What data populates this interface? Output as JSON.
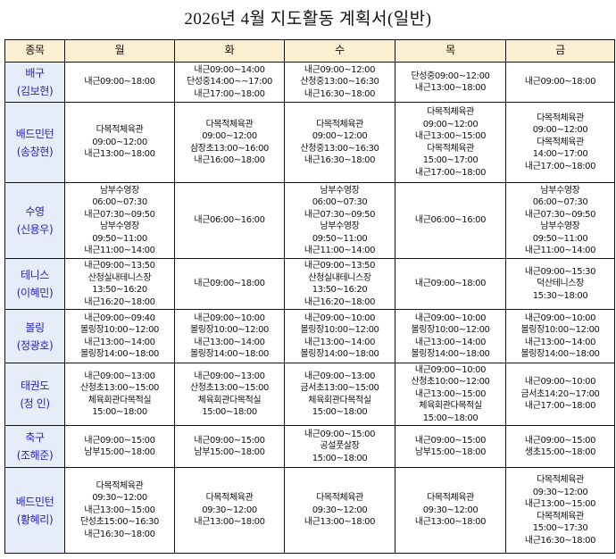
{
  "title": "2026년  4월  지도활동  계획서(일반)",
  "colors": {
    "header_bg": "#fdefd2",
    "sport_bg": "#e6edf8",
    "sport_text": "#2323c8"
  },
  "headers": [
    "종목",
    "월",
    "화",
    "수",
    "목",
    "금"
  ],
  "rows": [
    {
      "sport": "배구",
      "coach": "(김보현)",
      "days": [
        [
          "내근09:00~18:00"
        ],
        [
          "내근09:00~14:00",
          "단성중14:00~~17:00",
          "내근17:00~18:00"
        ],
        [
          "내근09:00~12:00",
          "산청중13:00~16:30",
          "내근16:30~18:00"
        ],
        [
          "단성중09:00~12:00",
          "내근13:00~18:00"
        ],
        [
          "내근09:00~18:00"
        ]
      ]
    },
    {
      "sport": "배드민턴",
      "coach": "(송창현)",
      "days": [
        [
          "다목적체육관",
          "09:00~12:00",
          "내근13:00~18:00"
        ],
        [
          "다목적체육관",
          "09:00~12:00",
          "삼장초13:00~16:00",
          "내근16:00~18:00"
        ],
        [
          "다목적체육관",
          "09:00~12:00",
          "산청중13:00~16:30",
          "내근16:30~18:00"
        ],
        [
          "다목적체육관",
          "09:00~12:00",
          "내근13:00~15:00",
          "다목적체육관",
          "15:00~17:00",
          "내근17:00~18:00"
        ],
        [
          "다목적체육관",
          "09:00~12:00",
          "다목적체육관",
          "14:00~17:00",
          "내근17:00~18:00"
        ]
      ]
    },
    {
      "sport": "수영",
      "coach": "(신용우)",
      "days": [
        [
          "남부수영장",
          "06:00~07:30",
          "내근07:30~09:50",
          "남부수영장",
          "09:50~11:00",
          "내근11:00~14:00"
        ],
        [
          "내근06:00~16:00"
        ],
        [
          "남부수영장",
          "06:00~07:30",
          "내근07:30~09:50",
          "남부수영장",
          "09:50~11:00",
          "내근11:00~14:00"
        ],
        [
          "내근06:00~16:00"
        ],
        [
          "남부수영장",
          "06:00~07:30",
          "내근07:30~09:50",
          "남부수영장",
          "09:50~11:00",
          "내근11:00~14:00"
        ]
      ]
    },
    {
      "sport": "테니스",
      "coach": "(이혜민)",
      "days": [
        [
          "내근09:00~13:50",
          "산청실내테니스장",
          "13:50~16:20",
          "내근16:20~18:00"
        ],
        [
          "내근09:00~18:00"
        ],
        [
          "내근09:00~13:50",
          "산청실내테니스장",
          "13:50~16:20",
          "내근16:20~18:00"
        ],
        [
          "내근09:00~18:00"
        ],
        [
          "내근09:00~15:30",
          "덕산테니스장",
          "15:30~18:00"
        ]
      ]
    },
    {
      "sport": "볼링",
      "coach": "(정광호)",
      "days": [
        [
          "내근09:00~09:40",
          "볼링장10:00~12:00",
          "내근13:00~14:00",
          "볼링장14:00~18:00"
        ],
        [
          "내근09:00~10:00",
          "볼링장10:00~12:00",
          "내근13:00~14:00",
          "볼링장14:00~18:00"
        ],
        [
          "내근09:00~10:00",
          "볼링장10:00~12:00",
          "내근13:00~14:00",
          "볼링장14:00~18:00"
        ],
        [
          "내근09:00~10:00",
          "볼링장10:00~12:00",
          "내근13:00~14:00",
          "볼링장14:00~18:00"
        ],
        [
          "내근09:00~10:00",
          "볼링장10:00~12:00",
          "내근13:00~14:00",
          "볼링장14:00~18:00"
        ]
      ]
    },
    {
      "sport": "태권도",
      "coach": "(정  인)",
      "days": [
        [
          "내근09:00~13:00",
          "산청초13:00~15:00",
          "체육회관다목적실",
          "15:00~18:00"
        ],
        [
          "내근09:00~13:00",
          "산청초13:00~15:00",
          "체육회관다목적실",
          "15:00~18:00"
        ],
        [
          "내근09:00~13:00",
          "금서초13:00~15:00",
          "체육회관다목적실",
          "15:00~18:00"
        ],
        [
          "내근09:00~10:00",
          "산청초10:00~12:00",
          "내근13:00~15:00",
          "체육회관다목적실",
          "15:00~18:00"
        ],
        [
          "내근09:00~10:00",
          "금서초14:20~17:00",
          "내근17:00~18:00"
        ]
      ]
    },
    {
      "sport": "축구",
      "coach": "(조해준)",
      "days": [
        [
          "내근09:00~15:00",
          "남부15:00~18:00"
        ],
        [
          "내근09:00~15:00",
          "남부15:00~18:00"
        ],
        [
          "내근09:00~15:00",
          "공설풋살장",
          "15:00~18:00"
        ],
        [
          "내근09:00~15:00",
          "남부15:00~18:00"
        ],
        [
          "내근09:00~15:00",
          "생초15:00~18:00"
        ]
      ]
    },
    {
      "sport": "배드민턴",
      "coach": "(황혜리)",
      "days": [
        [
          "다목적체육관",
          "09:30~12:00",
          "내근13:00~15:00",
          "단성초15:00~16:30",
          "내근16:30~18:00"
        ],
        [
          "다목적체육관",
          "09:30~12:00",
          "내근13:00~18:00"
        ],
        [
          "다목적체육관",
          "09:30~12:00",
          "내근13:00~18:00"
        ],
        [
          "다목적체육관",
          "09:30~12:00",
          "내근13:00~18:00"
        ],
        [
          "다목적체육관",
          "09:30~12:00",
          "내근13:00~15:00",
          "다목적체육관",
          "15:00~17:30",
          "내근16:30~18:00"
        ]
      ]
    }
  ]
}
